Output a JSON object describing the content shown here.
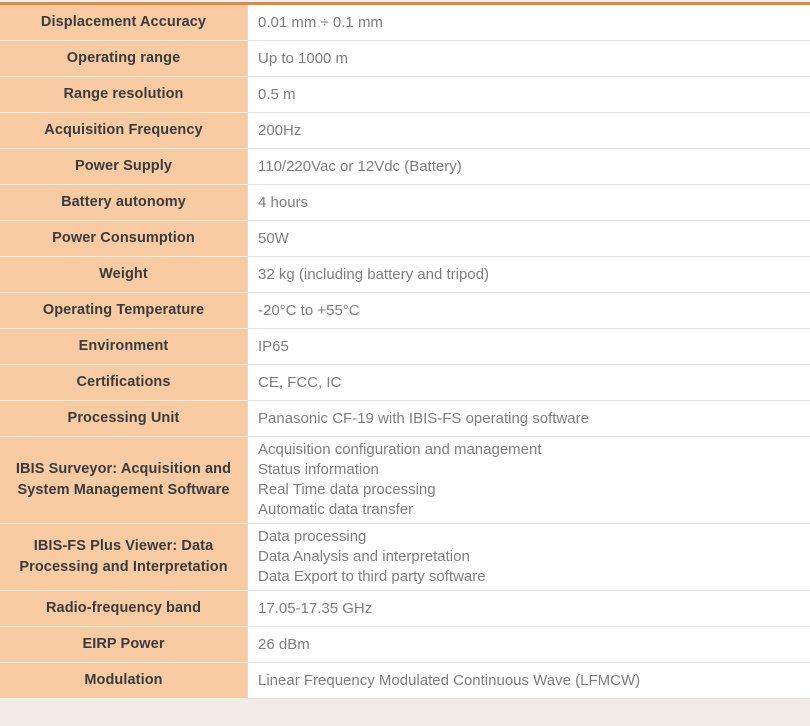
{
  "table": {
    "accent_color": "#e2873c",
    "label_bg_color": "#f8cba3",
    "label_text_color": "#3b3b3b",
    "value_text_color": "#7f7f7f",
    "rows": [
      {
        "label": "Displacement Accuracy",
        "values": [
          "0.01 mm ÷ 0.1 mm"
        ]
      },
      {
        "label": "Operating range",
        "values": [
          "Up to 1000 m"
        ]
      },
      {
        "label": "Range resolution",
        "values": [
          "0.5 m"
        ]
      },
      {
        "label": "Acquisition Frequency",
        "values": [
          "200Hz"
        ]
      },
      {
        "label": "Power Supply",
        "values": [
          "110/220Vac or 12Vdc (Battery)"
        ]
      },
      {
        "label": "Battery autonomy",
        "values": [
          "4 hours"
        ]
      },
      {
        "label": "Power Consumption",
        "values": [
          "50W"
        ]
      },
      {
        "label": "Weight",
        "values": [
          "32 kg (including battery and tripod)"
        ]
      },
      {
        "label": "Operating Temperature",
        "values": [
          "-20°C to +55°C"
        ]
      },
      {
        "label": "Environment",
        "values": [
          "IP65"
        ]
      },
      {
        "label": "Certifications",
        "values": [
          "CE, FCC, IC"
        ]
      },
      {
        "label": "Processing Unit",
        "values": [
          "Panasonic CF-19 with IBIS-FS operating software"
        ]
      },
      {
        "label": "IBIS Surveyor: Acquisition and System Management Software",
        "values": [
          "Acquisition configuration and management",
          "Status information",
          "Real Time data processing",
          "Automatic data transfer"
        ]
      },
      {
        "label": "IBIS-FS Plus Viewer: Data Processing and Interpretation",
        "values": [
          "Data processing",
          "Data Analysis and interpretation",
          "Data Export to third party software"
        ]
      },
      {
        "label": "Radio-frequency band",
        "values": [
          "17.05-17.35 GHz"
        ]
      },
      {
        "label": "EIRP Power",
        "values": [
          "26 dBm"
        ]
      },
      {
        "label": "Modulation",
        "values": [
          "Linear Frequency Modulated Continuous Wave (LFMCW)"
        ]
      }
    ]
  }
}
